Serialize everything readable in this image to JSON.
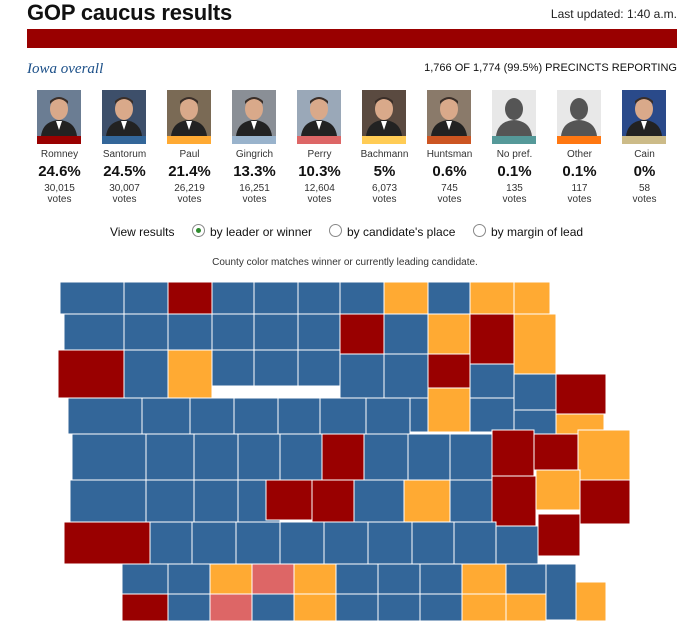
{
  "header": {
    "title": "GOP caucus results",
    "updated": "Last updated: 1:40 a.m."
  },
  "region": {
    "label": "Iowa overall",
    "precincts": "1,766 OF 1,774 (99.5%) PRECINCTS REPORTING"
  },
  "candidates": [
    {
      "name": "Romney",
      "pct": "24.6%",
      "votes": "30,015",
      "votes_label": "votes",
      "color": "#990000",
      "icon": "romney-photo"
    },
    {
      "name": "Santorum",
      "pct": "24.5%",
      "votes": "30,007",
      "votes_label": "votes",
      "color": "#336699",
      "icon": "santorum-photo"
    },
    {
      "name": "Paul",
      "pct": "21.4%",
      "votes": "26,219",
      "votes_label": "votes",
      "color": "#ffaa33",
      "icon": "paul-photo"
    },
    {
      "name": "Gingrich",
      "pct": "13.3%",
      "votes": "16,251",
      "votes_label": "votes",
      "color": "#99b3cc",
      "icon": "gingrich-photo"
    },
    {
      "name": "Perry",
      "pct": "10.3%",
      "votes": "12,604",
      "votes_label": "votes",
      "color": "#dd6666",
      "icon": "perry-photo"
    },
    {
      "name": "Bachmann",
      "pct": "5%",
      "votes": "6,073",
      "votes_label": "votes",
      "color": "#ffcc55",
      "icon": "bachmann-photo"
    },
    {
      "name": "Huntsman",
      "pct": "0.6%",
      "votes": "745",
      "votes_label": "votes",
      "color": "#cc5522",
      "icon": "huntsman-photo"
    },
    {
      "name": "No pref.",
      "pct": "0.1%",
      "votes": "135",
      "votes_label": "votes",
      "color": "#559999",
      "icon": "silhouette-icon"
    },
    {
      "name": "Other",
      "pct": "0.1%",
      "votes": "117",
      "votes_label": "votes",
      "color": "#ff7711",
      "icon": "silhouette-icon"
    },
    {
      "name": "Cain",
      "pct": "0%",
      "votes": "58",
      "votes_label": "votes",
      "color": "#ccbb88",
      "icon": "cain-photo"
    }
  ],
  "view": {
    "label": "View results",
    "options": [
      {
        "label": "by leader or winner",
        "selected": true
      },
      {
        "label": "by candidate's place",
        "selected": false
      },
      {
        "label": "by margin of lead",
        "selected": false
      }
    ]
  },
  "map": {
    "note": "County color matches winner or currently leading candidate.",
    "colors": {
      "Romney": "#990000",
      "Santorum": "#336699",
      "Paul": "#ffaa33",
      "Perry": "#dd6666"
    }
  }
}
